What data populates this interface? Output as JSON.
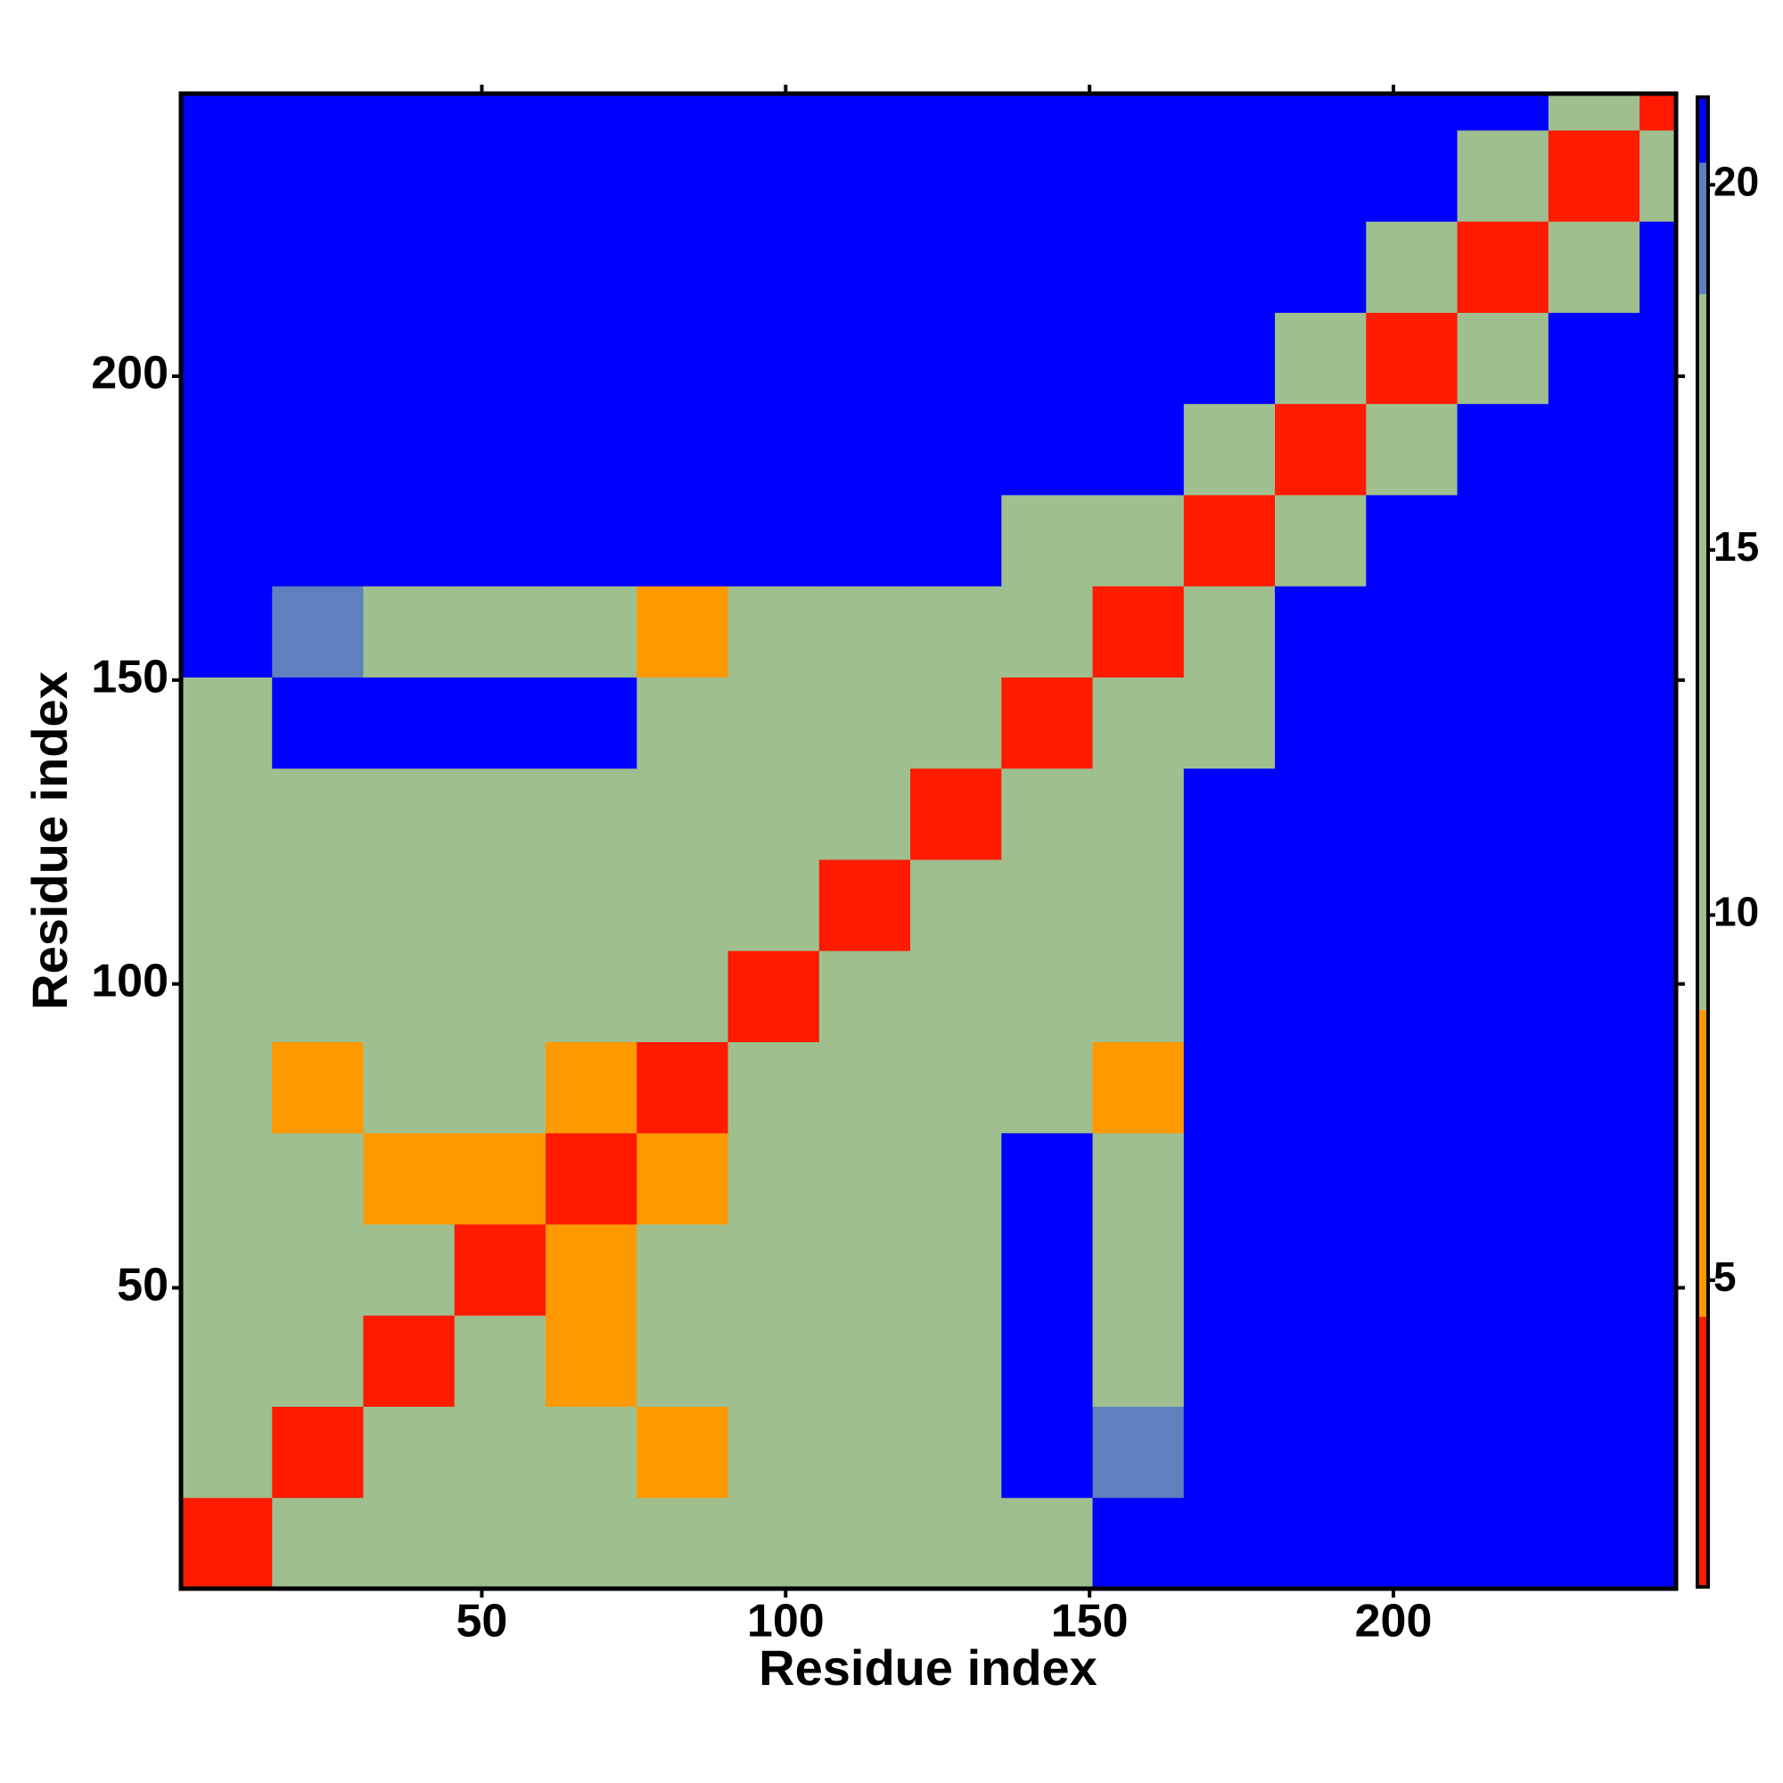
{
  "chart_data": {
    "type": "heatmap",
    "x_label": "Residue index",
    "y_label": "Residue index",
    "xlim": [
      0.5,
      246.5
    ],
    "ylim": [
      0.5,
      246.5
    ],
    "xticks": [
      50,
      100,
      150,
      200
    ],
    "yticks": [
      50,
      100,
      150,
      200
    ],
    "xbins": [
      0.5,
      15.5,
      30.5,
      45.5,
      60.5,
      75.5,
      90.5,
      105.5,
      120.5,
      135.5,
      150.5,
      165.5,
      180.5,
      195.5,
      210.5,
      225.5,
      240.5,
      246.5
    ],
    "ybins": [
      0.5,
      15.5,
      30.5,
      45.5,
      60.5,
      75.5,
      90.5,
      105.5,
      120.5,
      135.5,
      150.5,
      165.5,
      180.5,
      195.5,
      210.5,
      225.5,
      240.5,
      246.5
    ],
    "z": [
      [
        4,
        9,
        17,
        17,
        15,
        12,
        11,
        11,
        12,
        18,
        21,
        21,
        21,
        21,
        21,
        21,
        21
      ],
      [
        9,
        4,
        9,
        13,
        12,
        7,
        13,
        12,
        14,
        21,
        19,
        21,
        21,
        21,
        21,
        21,
        21
      ],
      [
        17,
        9,
        4,
        9,
        7,
        12,
        11,
        10,
        16,
        21,
        16,
        21,
        21,
        21,
        21,
        21,
        21
      ],
      [
        17,
        13,
        9,
        4,
        8,
        11,
        12,
        11,
        13,
        21,
        16,
        21,
        21,
        21,
        21,
        21,
        21
      ],
      [
        15,
        12,
        7,
        8,
        4,
        7,
        11,
        12,
        14,
        21,
        14,
        21,
        21,
        21,
        21,
        21,
        21
      ],
      [
        12,
        7,
        12,
        11,
        7,
        4,
        9,
        10,
        11,
        15,
        7,
        21,
        21,
        21,
        21,
        21,
        21
      ],
      [
        11,
        13,
        11,
        12,
        11,
        9,
        4,
        9,
        10,
        14,
        10,
        21,
        21,
        21,
        21,
        21,
        21
      ],
      [
        11,
        12,
        10,
        11,
        12,
        10,
        9,
        4,
        9,
        11,
        14,
        21,
        21,
        21,
        21,
        21,
        21
      ],
      [
        12,
        14,
        16,
        13,
        14,
        11,
        10,
        9,
        4,
        10,
        11,
        21,
        21,
        21,
        21,
        21,
        21
      ],
      [
        18,
        21,
        21,
        21,
        21,
        15,
        14,
        11,
        10,
        4,
        10,
        13,
        21,
        21,
        21,
        21,
        21
      ],
      [
        21,
        19,
        16,
        16,
        14,
        7,
        10,
        14,
        11,
        10,
        4,
        11,
        21,
        21,
        21,
        21,
        21
      ],
      [
        21,
        21,
        21,
        21,
        21,
        21,
        21,
        21,
        21,
        13,
        11,
        4,
        12,
        21,
        21,
        21,
        21
      ],
      [
        21,
        21,
        21,
        21,
        21,
        21,
        21,
        21,
        21,
        21,
        21,
        12,
        4,
        12,
        21,
        21,
        21
      ],
      [
        21,
        21,
        21,
        21,
        21,
        21,
        21,
        21,
        21,
        21,
        21,
        21,
        12,
        4,
        12,
        21,
        21
      ],
      [
        21,
        21,
        21,
        21,
        21,
        21,
        21,
        21,
        21,
        21,
        21,
        21,
        21,
        12,
        4,
        12,
        21
      ],
      [
        21,
        21,
        21,
        21,
        21,
        21,
        21,
        21,
        21,
        21,
        21,
        21,
        21,
        21,
        12,
        4,
        12
      ],
      [
        21,
        21,
        21,
        21,
        21,
        21,
        21,
        21,
        21,
        21,
        21,
        21,
        21,
        21,
        21,
        12,
        4
      ]
    ],
    "colorbar_lim": [
      0.8,
      21.2
    ],
    "colorbar_ticks": [
      5,
      10,
      15,
      20
    ],
    "levels": [
      0.8,
      4.5,
      8.7,
      18.5,
      20.3,
      21.2
    ],
    "level_colors": [
      "#ff1a00",
      "#ff9900",
      "#9fbf8f",
      "#5f7fbf",
      "#0000ff"
    ]
  }
}
